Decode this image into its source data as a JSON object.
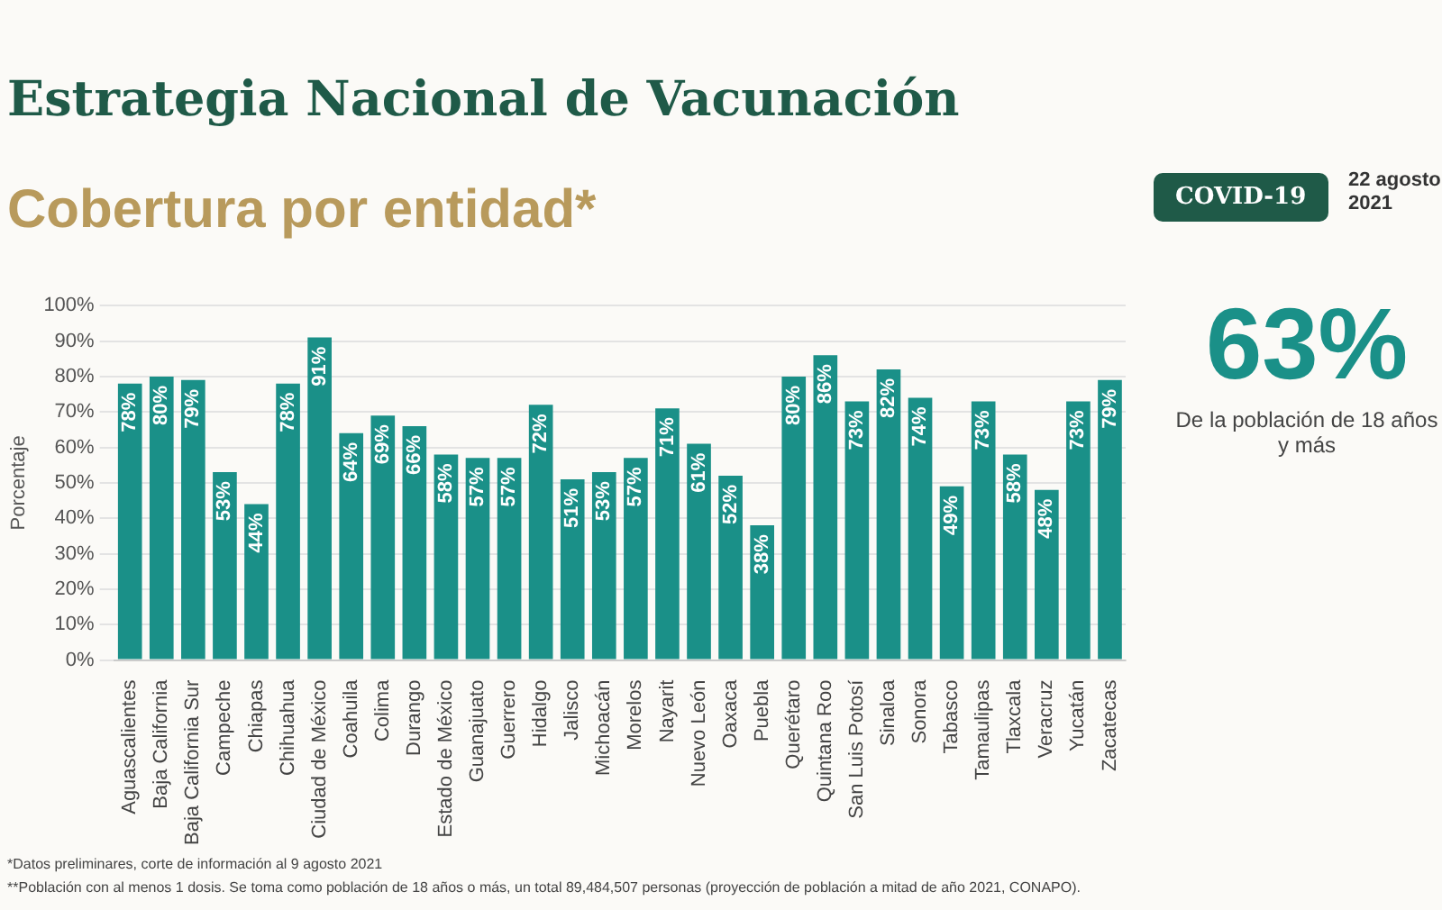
{
  "chart_data": {
    "type": "bar",
    "title": "Estrategia Nacional de Vacunación",
    "subtitle": "Cobertura por entidad*",
    "ylabel": "Porcentaje",
    "categories": [
      "Aguascalientes",
      "Baja California",
      "Baja California Sur",
      "Campeche",
      "Chiapas",
      "Chihuahua",
      "Ciudad de México",
      "Coahuila",
      "Colima",
      "Durango",
      "Estado de México",
      "Guanajuato",
      "Guerrero",
      "Hidalgo",
      "Jalisco",
      "Michoacán",
      "Morelos",
      "Nayarit",
      "Nuevo León",
      "Oaxaca",
      "Puebla",
      "Querétaro",
      "Quintana Roo",
      "San Luis Potosí",
      "Sinaloa",
      "Sonora",
      "Tabasco",
      "Tamaulipas",
      "Tlaxcala",
      "Veracruz",
      "Yucatán",
      "Zacatecas"
    ],
    "values": [
      78,
      80,
      79,
      53,
      44,
      78,
      91,
      64,
      69,
      66,
      58,
      57,
      57,
      72,
      51,
      53,
      57,
      71,
      61,
      52,
      38,
      80,
      86,
      73,
      82,
      74,
      49,
      73,
      58,
      48,
      73,
      79
    ],
    "value_labels": [
      "78%",
      "80%",
      "79%",
      "53%",
      "44%",
      "78%",
      "91%",
      "64%",
      "69%",
      "66%",
      "58%",
      "57%",
      "57%",
      "72%",
      "51%",
      "53%",
      "57%",
      "71%",
      "61%",
      "52%",
      "38%",
      "80%",
      "86%",
      "73%",
      "82%",
      "74%",
      "49%",
      "73%",
      "58%",
      "48%",
      "73%",
      "79%"
    ],
    "color": "#1a9088",
    "ylim": [
      0,
      100
    ],
    "yticks": [
      {
        "value": 0,
        "label": "0%"
      },
      {
        "value": 10,
        "label": "10%"
      },
      {
        "value": 20,
        "label": "20%"
      },
      {
        "value": 30,
        "label": "30%"
      },
      {
        "value": 40,
        "label": "40%"
      },
      {
        "value": 50,
        "label": "50%"
      },
      {
        "value": 60,
        "label": "60%"
      },
      {
        "value": 70,
        "label": "70%"
      },
      {
        "value": 80,
        "label": "80%"
      },
      {
        "value": 90,
        "label": "90%"
      },
      {
        "value": 100,
        "label": "100%"
      }
    ],
    "grid": "y",
    "legend": false,
    "annotations": [
      "COVID-19",
      "22 agosto 2021",
      "63%",
      "De la población de 18 años y más",
      "*Datos preliminares, corte de información al 9 agosto 2021",
      "**Población con al menos 1 dosis. Se toma como población de 18 años o más, un total 89,484,507 personas (proyección de población a mitad de año 2021, CONAPO)."
    ]
  }
}
